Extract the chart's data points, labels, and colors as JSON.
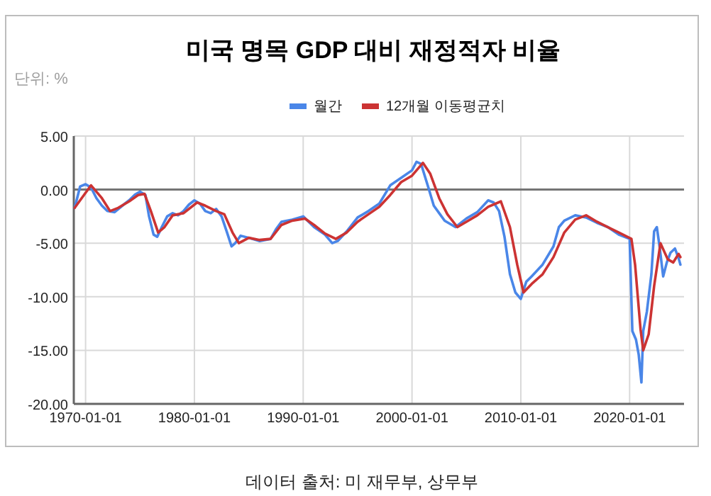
{
  "chart_data": {
    "type": "line",
    "title": "미국 명목 GDP 대비 재정적자 비율",
    "ylabel": "단위: %",
    "annotations": [
      "데이터 출처: 미 재무부, 상무부"
    ],
    "legend": "top",
    "grid": true,
    "xlim": [
      "1968-12",
      "2025-01"
    ],
    "ylim": [
      -20,
      5
    ],
    "xticks": [
      "1970-01-01",
      "1980-01-01",
      "1990-01-01",
      "2000-01-01",
      "2010-01-01",
      "2020-01-01"
    ],
    "yticks": [
      {
        "value": 5,
        "label": "5.00"
      },
      {
        "value": 0,
        "label": "0.00"
      },
      {
        "value": -5,
        "label": "-5.00"
      },
      {
        "value": -10,
        "label": "-10.00"
      },
      {
        "value": -15,
        "label": "-15.00"
      },
      {
        "value": -20,
        "label": "-20.00"
      }
    ],
    "ref_lines": [
      {
        "axis": "y",
        "value": 0,
        "color": "#757575"
      }
    ],
    "series": [
      {
        "name": "월간",
        "color": "#4a86e8",
        "x": [
          "1969-01",
          "1969-07",
          "1970-01",
          "1970-07",
          "1971-01",
          "1971-07",
          "1972-01",
          "1972-09",
          "1973-07",
          "1974-01",
          "1974-07",
          "1975-01",
          "1975-07",
          "1975-11",
          "1976-04",
          "1976-08",
          "1977-01",
          "1977-07",
          "1978-01",
          "1978-07",
          "1979-01",
          "1979-07",
          "1980-01",
          "1980-07",
          "1981-01",
          "1981-07",
          "1982-01",
          "1982-07",
          "1983-01",
          "1983-06",
          "1983-10",
          "1984-04",
          "1985-01",
          "1986-01",
          "1987-01",
          "1987-07",
          "1988-01",
          "1989-01",
          "1990-01",
          "1990-07",
          "1991-01",
          "1992-01",
          "1992-09",
          "1993-03",
          "1994-01",
          "1995-01",
          "1996-01",
          "1997-01",
          "1998-01",
          "1999-01",
          "2000-01",
          "2000-06",
          "2000-11",
          "2001-07",
          "2002-01",
          "2002-07",
          "2003-01",
          "2004-01",
          "2005-01",
          "2006-01",
          "2007-01",
          "2007-07",
          "2008-01",
          "2008-07",
          "2009-01",
          "2009-07",
          "2010-01",
          "2010-07",
          "2011-01",
          "2012-01",
          "2013-01",
          "2013-07",
          "2014-01",
          "2015-01",
          "2016-01",
          "2017-01",
          "2018-01",
          "2019-01",
          "2020-01",
          "2020-04",
          "2020-08",
          "2020-11",
          "2021-02",
          "2021-04",
          "2021-08",
          "2022-01",
          "2022-04",
          "2022-07",
          "2022-10",
          "2023-02",
          "2023-06",
          "2023-10",
          "2024-03",
          "2024-07",
          "2024-09"
        ],
        "values": [
          -1.7,
          0.3,
          0.5,
          0.2,
          -0.8,
          -1.5,
          -2.0,
          -2.1,
          -1.4,
          -1.0,
          -0.5,
          -0.2,
          -0.5,
          -2.5,
          -4.2,
          -4.4,
          -3.5,
          -2.5,
          -2.2,
          -2.4,
          -2.0,
          -1.4,
          -1.0,
          -1.3,
          -2.0,
          -2.2,
          -1.8,
          -2.5,
          -4.0,
          -5.3,
          -5.0,
          -4.3,
          -4.5,
          -4.8,
          -4.6,
          -3.7,
          -3.0,
          -2.8,
          -2.5,
          -3.0,
          -3.5,
          -4.2,
          -5.0,
          -4.8,
          -3.9,
          -2.6,
          -2.0,
          -1.3,
          0.4,
          1.1,
          1.8,
          2.6,
          2.4,
          0.2,
          -1.5,
          -2.2,
          -2.9,
          -3.5,
          -2.7,
          -2.1,
          -1.0,
          -1.2,
          -2.0,
          -4.4,
          -7.9,
          -9.6,
          -10.2,
          -8.6,
          -8.1,
          -7.0,
          -5.3,
          -3.5,
          -2.9,
          -2.4,
          -2.6,
          -3.1,
          -3.5,
          -4.2,
          -4.6,
          -13.2,
          -14.0,
          -15.4,
          -18.0,
          -13.2,
          -11.4,
          -7.9,
          -3.9,
          -3.5,
          -5.3,
          -8.1,
          -6.8,
          -5.9,
          -5.5,
          -6.4,
          -7.0
        ]
      },
      {
        "name": "12개월 이동평균치",
        "color": "#cc3333",
        "x": [
          "1969-01",
          "1970-07",
          "1971-07",
          "1972-04",
          "1973-01",
          "1974-01",
          "1974-11",
          "1975-06",
          "1976-01",
          "1976-09",
          "1977-04",
          "1978-01",
          "1979-01",
          "1980-04",
          "1981-01",
          "1982-01",
          "1982-10",
          "1983-07",
          "1984-02",
          "1985-01",
          "1986-01",
          "1987-01",
          "1988-01",
          "1989-01",
          "1990-03",
          "1991-01",
          "1992-01",
          "1993-01",
          "1994-01",
          "1995-01",
          "1996-01",
          "1997-01",
          "1998-01",
          "1999-01",
          "2000-01",
          "2001-01",
          "2001-09",
          "2002-07",
          "2003-04",
          "2004-03",
          "2005-01",
          "2006-01",
          "2007-01",
          "2008-03",
          "2009-01",
          "2009-09",
          "2010-04",
          "2011-01",
          "2012-01",
          "2013-01",
          "2014-01",
          "2015-01",
          "2016-01",
          "2017-01",
          "2018-01",
          "2019-01",
          "2020-03",
          "2020-07",
          "2021-01",
          "2021-04",
          "2021-10",
          "2022-04",
          "2022-11",
          "2023-07",
          "2024-01",
          "2024-07",
          "2024-09"
        ],
        "values": [
          -1.7,
          0.4,
          -0.8,
          -2.0,
          -1.7,
          -1.1,
          -0.5,
          -0.4,
          -2.0,
          -4.0,
          -3.5,
          -2.4,
          -2.2,
          -1.2,
          -1.5,
          -2.0,
          -2.3,
          -4.0,
          -5.0,
          -4.5,
          -4.7,
          -4.6,
          -3.3,
          -2.9,
          -2.7,
          -3.3,
          -4.1,
          -4.6,
          -4.0,
          -3.0,
          -2.3,
          -1.6,
          -0.5,
          0.7,
          1.3,
          2.5,
          1.5,
          -0.8,
          -2.3,
          -3.5,
          -3.0,
          -2.4,
          -1.6,
          -1.1,
          -3.5,
          -7.0,
          -9.6,
          -8.8,
          -7.9,
          -6.3,
          -4.0,
          -2.8,
          -2.4,
          -3.0,
          -3.5,
          -4.0,
          -4.6,
          -7.0,
          -13.0,
          -15.0,
          -13.5,
          -9.0,
          -5.0,
          -6.5,
          -6.8,
          -6.0,
          -6.3
        ]
      }
    ]
  }
}
